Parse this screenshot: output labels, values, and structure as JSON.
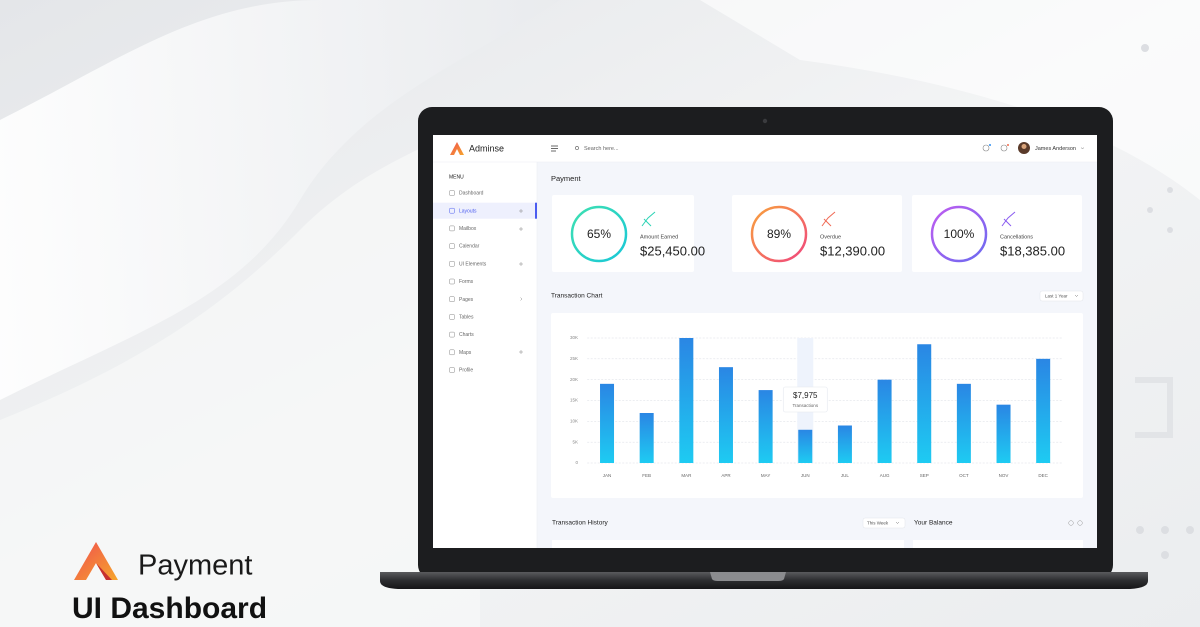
{
  "branding": {
    "title": "Payment",
    "subtitle": "UI Dashboard"
  },
  "app": {
    "name": "Adminse",
    "search_placeholder": "Search here...",
    "user": "James Anderson"
  },
  "sidebar": {
    "heading": "MENU",
    "items": [
      "Dashboard",
      "Layouts",
      "Mailbox",
      "Calendar",
      "UI Elements",
      "Forms",
      "Pages",
      "Tables",
      "Charts",
      "Maps",
      "Profile"
    ],
    "active": 1
  },
  "payment": {
    "title": "Payment",
    "cards": [
      {
        "percent": "65%",
        "label": "Amount Earned",
        "amount": "$25,450.00"
      },
      {
        "percent": "89%",
        "label": "Overdue",
        "amount": "$12,390.00"
      },
      {
        "percent": "100%",
        "label": "Cancellations",
        "amount": "$18,385.00"
      }
    ]
  },
  "chart_data": {
    "type": "bar",
    "title": "Transaction Chart",
    "period": "Last 1 Year",
    "categories": [
      "JAN",
      "FEB",
      "MAR",
      "APR",
      "MAY",
      "JUN",
      "JUL",
      "AUG",
      "SEP",
      "OCT",
      "NOV",
      "DEC"
    ],
    "values": [
      19000,
      12000,
      30000,
      23000,
      17500,
      7975,
      9000,
      20000,
      28500,
      19000,
      14000,
      25000
    ],
    "value_labels": [
      null,
      null,
      null,
      null,
      null,
      "$7,975",
      null,
      null,
      null,
      null,
      null,
      null
    ],
    "tooltip_label": "Transactions",
    "ylim": [
      0,
      30000
    ],
    "yticks": [
      0,
      {
        "value": 5000,
        "label": "5K"
      },
      {
        "value": 10000,
        "label": "10K"
      },
      {
        "value": 15000,
        "label": "15K"
      },
      {
        "value": 20000,
        "label": "20K"
      },
      {
        "value": 25000,
        "label": "25K"
      },
      {
        "value": 30000,
        "label": "30K"
      }
    ],
    "grid": true,
    "color": "#2196f3"
  },
  "sections": {
    "history": {
      "title": "Transaction History",
      "period": "This Week"
    },
    "balance": {
      "title": "Your Balance"
    }
  }
}
